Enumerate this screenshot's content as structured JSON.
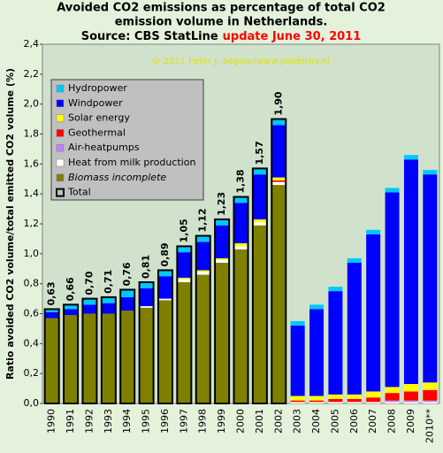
{
  "chart_data": {
    "type": "stacked-bar",
    "title": [
      "Avoided CO2 emissions as percentage of total CO2",
      "emission volume in Netherlands."
    ],
    "subtitle": "Source: CBS StatLine",
    "subtitle_highlight": "update June 30, 2011",
    "copyright": "© 2011 Peter J. Segaar/www.polderpv.nl",
    "y_label": "Ratio avoided CO2 volume/total emitted CO2 volume (%)",
    "categories": [
      "1990",
      "1991",
      "1992",
      "1993",
      "1994",
      "1995",
      "1996",
      "1997",
      "1998",
      "1999",
      "2000",
      "2001",
      "2002",
      "2003",
      "2004",
      "2005",
      "2006",
      "2007",
      "2008",
      "2009",
      "2010**"
    ],
    "series": [
      {
        "name": "Biomass incomplete",
        "color": "#808000",
        "values": [
          0.57,
          0.59,
          0.6,
          0.6,
          0.62,
          0.64,
          0.69,
          0.81,
          0.86,
          0.94,
          1.03,
          1.19,
          1.46,
          0,
          0,
          0,
          0,
          0,
          0,
          0,
          0
        ]
      },
      {
        "name": "Heat from milk production",
        "color": "#ffffff",
        "values": [
          0,
          0,
          0,
          0,
          0,
          0.01,
          0.01,
          0.02,
          0.02,
          0.02,
          0.02,
          0.02,
          0.02,
          0.01,
          0.01,
          0.01,
          0.01,
          0.01,
          0.01,
          0.01,
          0.01
        ]
      },
      {
        "name": "Air-heatpumps",
        "color": "#c080ff",
        "values": [
          0,
          0,
          0,
          0,
          0,
          0,
          0,
          0,
          0,
          0,
          0,
          0,
          0,
          0,
          0,
          0,
          0,
          0,
          0.01,
          0.01,
          0.01
        ]
      },
      {
        "name": "Geothermal",
        "color": "#ff0000",
        "values": [
          0,
          0,
          0,
          0,
          0,
          0,
          0,
          0,
          0,
          0,
          0,
          0,
          0.01,
          0.01,
          0.01,
          0.02,
          0.02,
          0.03,
          0.05,
          0.06,
          0.07
        ]
      },
      {
        "name": "Solar energy",
        "color": "#ffff00",
        "values": [
          0,
          0,
          0,
          0,
          0,
          0,
          0,
          0.01,
          0.01,
          0.01,
          0.02,
          0.02,
          0.02,
          0.03,
          0.03,
          0.03,
          0.03,
          0.04,
          0.04,
          0.05,
          0.05
        ]
      },
      {
        "name": "Windpower",
        "color": "#0000ff",
        "values": [
          0.04,
          0.04,
          0.06,
          0.07,
          0.09,
          0.12,
          0.15,
          0.17,
          0.19,
          0.22,
          0.27,
          0.3,
          0.35,
          0.47,
          0.58,
          0.69,
          0.88,
          1.05,
          1.3,
          1.5,
          1.39
        ]
      },
      {
        "name": "Hydropower",
        "color": "#00c8ff",
        "values": [
          0.02,
          0.03,
          0.04,
          0.04,
          0.05,
          0.04,
          0.04,
          0.04,
          0.04,
          0.04,
          0.04,
          0.04,
          0.04,
          0.03,
          0.03,
          0.03,
          0.03,
          0.03,
          0.03,
          0.03,
          0.03
        ]
      }
    ],
    "total": {
      "name": "Total",
      "values": [
        0.63,
        0.66,
        0.7,
        0.71,
        0.76,
        0.81,
        0.89,
        1.05,
        1.12,
        1.23,
        1.38,
        1.57,
        1.9,
        null,
        null,
        null,
        null,
        null,
        null,
        null,
        null
      ],
      "value_labels": [
        "0,63",
        "0,66",
        "0,70",
        "0,71",
        "0,76",
        "0,81",
        "0,89",
        "1,05",
        "1,12",
        "1,23",
        "1,38",
        "1,57",
        "1,90",
        null,
        null,
        null,
        null,
        null,
        null,
        null,
        null
      ]
    },
    "ylim": [
      0,
      2.4
    ],
    "yticks": [
      {
        "value": 0,
        "label": "0,0"
      },
      {
        "value": 0.2,
        "label": "0,2"
      },
      {
        "value": 0.4,
        "label": "0,4"
      },
      {
        "value": 0.6,
        "label": "0,6"
      },
      {
        "value": 0.8,
        "label": "0,8"
      },
      {
        "value": 1,
        "label": "1,0"
      },
      {
        "value": 1.2,
        "label": "1,2"
      },
      {
        "value": 1.4,
        "label": "1,4"
      },
      {
        "value": 1.6,
        "label": "1,6"
      },
      {
        "value": 1.8,
        "label": "1,8"
      },
      {
        "value": 2,
        "label": "2,0"
      },
      {
        "value": 2.2,
        "label": "2,2"
      },
      {
        "value": 2.4,
        "label": "2,4"
      }
    ],
    "grid": false,
    "legend": "top-left"
  }
}
